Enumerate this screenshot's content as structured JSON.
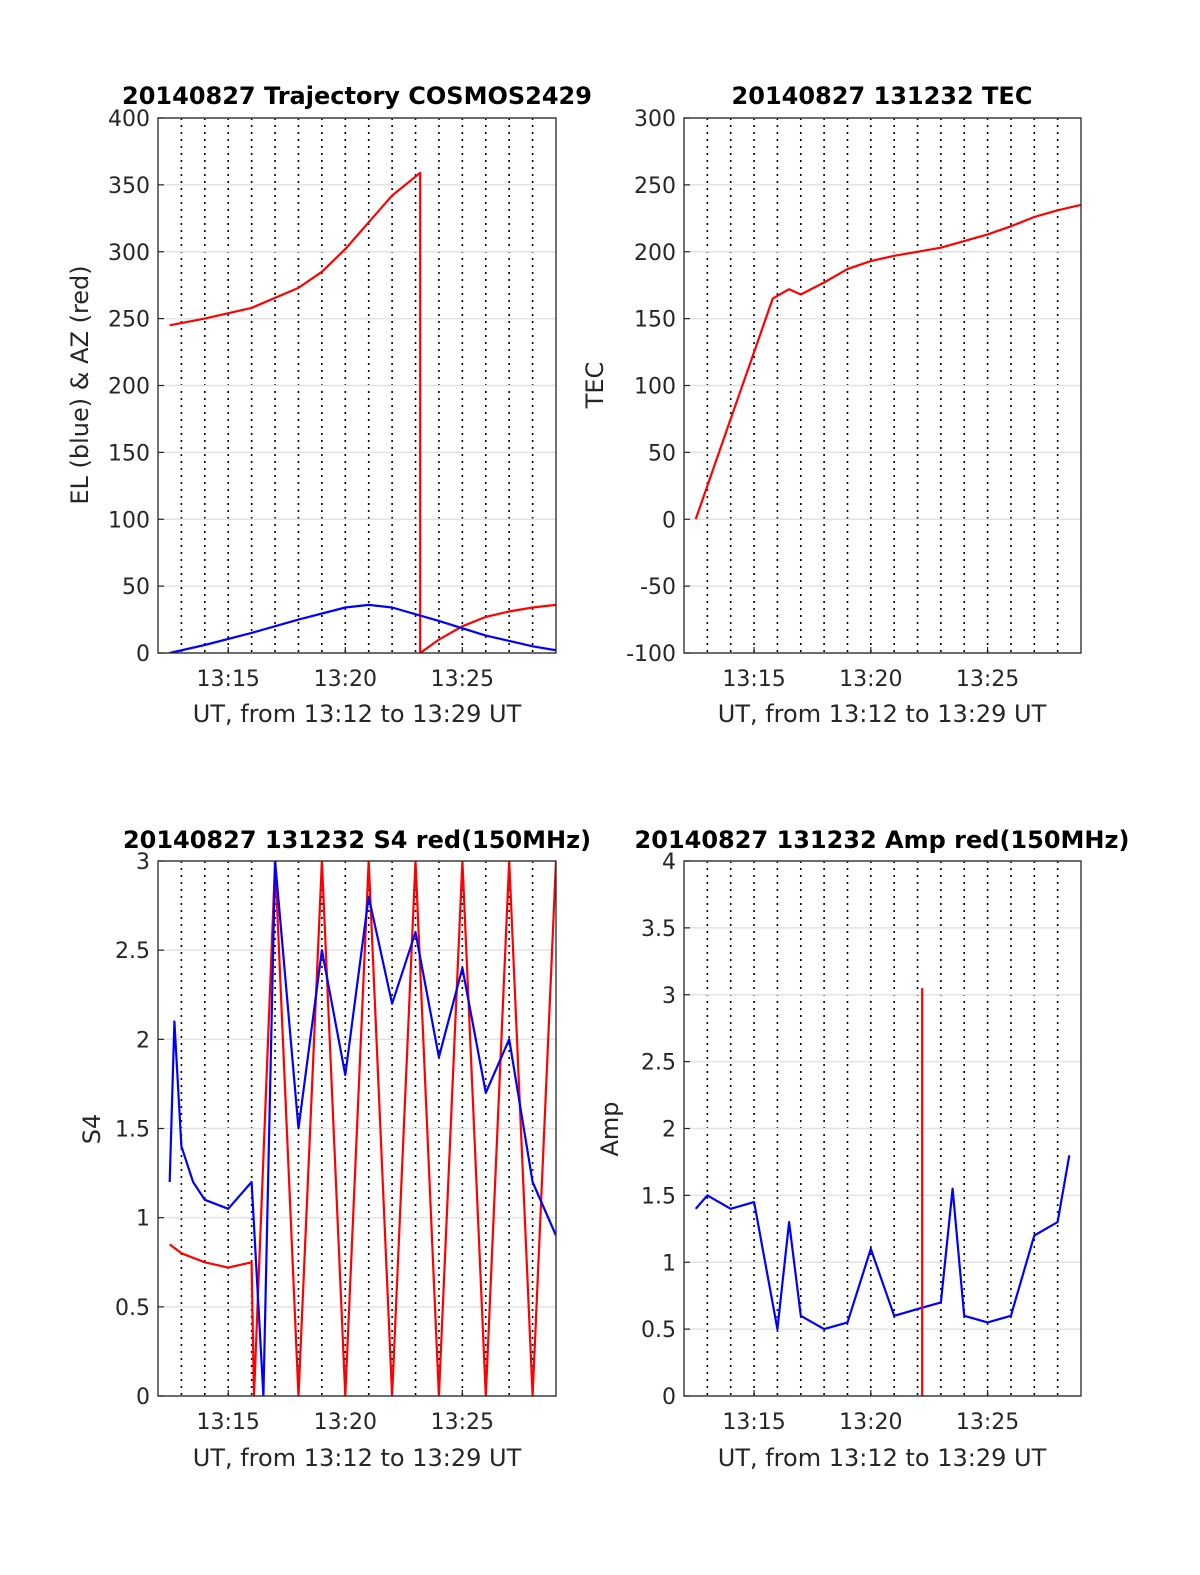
{
  "chart_data": [
    {
      "type": "line",
      "title": "20140827 Trajectory COSMOS2429",
      "xlabel": "UT, from 13:12 to 13:29 UT",
      "ylabel": "EL (blue) & AZ (red)",
      "xlim": [
        "13:12",
        "13:29"
      ],
      "ylim": [
        0,
        400
      ],
      "x_tick_labels": [
        "13:15",
        "13:20",
        "13:25"
      ],
      "y_tick_labels": [
        "0",
        "50",
        "100",
        "150",
        "200",
        "250",
        "300",
        "350",
        "400"
      ],
      "grid": true,
      "series": [
        {
          "color": "#ff0000",
          "x": [
            "13:12.5",
            "13:14",
            "13:16",
            "13:18",
            "13:19",
            "13:20",
            "13:21",
            "13:22",
            "13:23.2",
            "13:23.2",
            "13:24",
            "13:25",
            "13:26",
            "13:27",
            "13:28",
            "13:29"
          ],
          "y": [
            245,
            250,
            258,
            273,
            285,
            302,
            322,
            342,
            359,
            0,
            10,
            20,
            27,
            31,
            34,
            36
          ]
        },
        {
          "color": "#0000ff",
          "x": [
            "13:12.5",
            "13:14",
            "13:16",
            "13:18",
            "13:20",
            "13:21",
            "13:22",
            "13:24",
            "13:26",
            "13:28",
            "13:29"
          ],
          "y": [
            0,
            6,
            15,
            25,
            34,
            36,
            34,
            24,
            13,
            5,
            2
          ]
        }
      ]
    },
    {
      "type": "line",
      "title": "20140827 131232 TEC",
      "xlabel": "UT, from 13:12 to 13:29 UT",
      "ylabel": "TEC",
      "xlim": [
        "13:12",
        "13:29"
      ],
      "ylim": [
        -100,
        300
      ],
      "x_tick_labels": [
        "13:15",
        "13:20",
        "13:25"
      ],
      "y_tick_labels": [
        "-100",
        "-50",
        "0",
        "50",
        "100",
        "150",
        "200",
        "250",
        "300"
      ],
      "grid": true,
      "series": [
        {
          "color": "#ff0000",
          "x": [
            "13:12.5",
            "13:13",
            "13:14",
            "13:15",
            "13:15.8",
            "13:16.5",
            "13:17",
            "13:18",
            "13:19",
            "13:20",
            "13:21",
            "13:22",
            "13:23",
            "13:24",
            "13:25",
            "13:26",
            "13:27",
            "13:28",
            "13:29"
          ],
          "y": [
            0,
            25,
            75,
            125,
            165,
            172,
            168,
            177,
            187,
            193,
            197,
            200,
            203,
            208,
            213,
            219,
            226,
            231,
            235
          ]
        }
      ]
    },
    {
      "type": "line",
      "title": "20140827 131232 S4 red(150MHz)",
      "xlabel": "UT, from 13:12 to 13:29 UT",
      "ylabel": "S4",
      "xlim": [
        "13:12",
        "13:29"
      ],
      "ylim": [
        0,
        3
      ],
      "x_tick_labels": [
        "13:15",
        "13:20",
        "13:25"
      ],
      "y_tick_labels": [
        "0",
        "0.5",
        "1",
        "1.5",
        "2",
        "2.5",
        "3"
      ],
      "grid": true,
      "series": [
        {
          "color": "#ff0000",
          "x": [
            "13:12.5",
            "13:13",
            "13:14",
            "13:15",
            "13:16",
            "13:16.1",
            "13:17",
            "13:18",
            "13:19",
            "13:20",
            "13:21",
            "13:22",
            "13:23",
            "13:24",
            "13:25",
            "13:26",
            "13:27",
            "13:28",
            "13:29"
          ],
          "y": [
            0.85,
            0.8,
            0.75,
            0.72,
            0.75,
            0,
            3,
            0,
            3,
            0,
            3,
            0,
            3,
            0,
            3,
            0,
            3,
            0,
            3
          ]
        },
        {
          "color": "#0000ff",
          "x": [
            "13:12.5",
            "13:12.7",
            "13:13",
            "13:13.5",
            "13:14",
            "13:15",
            "13:16",
            "13:16.5",
            "13:17",
            "13:18",
            "13:19",
            "13:20",
            "13:21",
            "13:22",
            "13:23",
            "13:24",
            "13:25",
            "13:26",
            "13:27",
            "13:28",
            "13:29"
          ],
          "y": [
            1.2,
            2.1,
            1.4,
            1.2,
            1.1,
            1.05,
            1.2,
            0,
            3,
            1.5,
            2.5,
            1.8,
            2.8,
            2.2,
            2.6,
            1.9,
            2.4,
            1.7,
            2.0,
            1.2,
            0.9
          ]
        }
      ]
    },
    {
      "type": "line",
      "title": "20140827 131232 Amp red(150MHz)",
      "xlabel": "UT, from 13:12 to 13:29 UT",
      "ylabel": "Amp",
      "xlim": [
        "13:12",
        "13:29"
      ],
      "ylim": [
        0,
        4
      ],
      "x_tick_labels": [
        "13:15",
        "13:20",
        "13:25"
      ],
      "y_tick_labels": [
        "0",
        "0.5",
        "1",
        "1.5",
        "2",
        "2.5",
        "3",
        "3.5",
        "4"
      ],
      "grid": true,
      "series": [
        {
          "color": "#0000ff",
          "x": [
            "13:12.5",
            "13:13",
            "13:14",
            "13:15",
            "13:16",
            "13:16.5",
            "13:17",
            "13:18",
            "13:19",
            "13:20",
            "13:21",
            "13:22",
            "13:23",
            "13:23.5",
            "13:24",
            "13:25",
            "13:26",
            "13:27",
            "13:28",
            "13:28.5"
          ],
          "y": [
            1.4,
            1.5,
            1.4,
            1.45,
            0.5,
            1.3,
            0.6,
            0.5,
            0.55,
            1.1,
            0.6,
            0.65,
            0.7,
            1.55,
            0.6,
            0.55,
            0.6,
            1.2,
            1.3,
            1.8
          ]
        },
        {
          "color": "#ff0000",
          "x": [
            "13:22.2",
            "13:22.2"
          ],
          "y": [
            0,
            3.05
          ]
        }
      ]
    }
  ]
}
